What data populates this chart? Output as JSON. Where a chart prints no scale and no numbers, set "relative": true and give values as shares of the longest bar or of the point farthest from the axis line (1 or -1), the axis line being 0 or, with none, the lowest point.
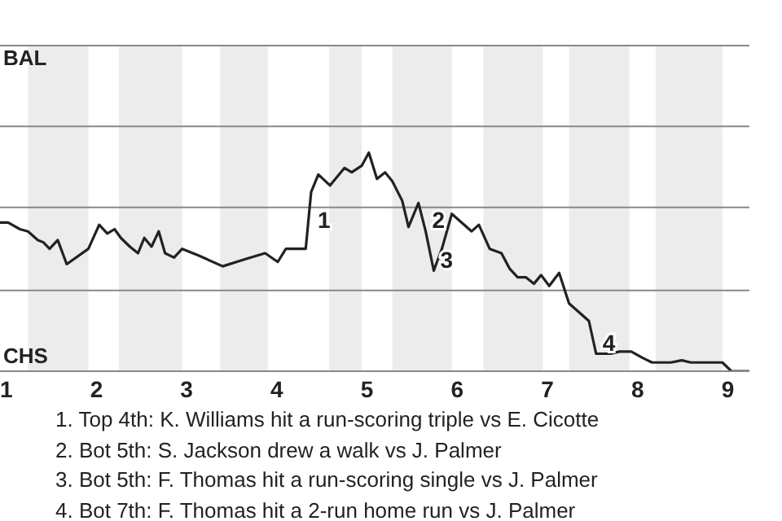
{
  "chart_data": {
    "type": "line",
    "relative": true,
    "xlim": [
      0.93,
      9.24
    ],
    "xticks": [
      1,
      2,
      3,
      4,
      5,
      6,
      7,
      8,
      9
    ],
    "ref_lines": [
      {
        "axis": "y",
        "value": 0.37,
        "color": "#888888"
      },
      {
        "axis": "y",
        "value": 0.75,
        "color": "#888888"
      },
      {
        "axis": "y",
        "value": 1.12,
        "color": "#888888"
      },
      {
        "axis": "y",
        "value": 1.49,
        "color": "#888888"
      }
    ],
    "marker": "none",
    "line_style": "solid",
    "series": [
      {
        "color": "#222222",
        "x": [
          0.93,
          1.02,
          1.15,
          1.24,
          1.35,
          1.41,
          1.48,
          1.57,
          1.67,
          1.91,
          2.03,
          2.12,
          2.2,
          2.27,
          2.37,
          2.46,
          2.53,
          2.61,
          2.69,
          2.76,
          2.86,
          2.95,
          3.13,
          3.4,
          3.63,
          3.87,
          4.01,
          4.1,
          4.32,
          4.38,
          4.46,
          4.59,
          4.75,
          4.83,
          4.94,
          5.02,
          5.11,
          5.2,
          5.28,
          5.39,
          5.46,
          5.57,
          5.65,
          5.74,
          5.83,
          5.94,
          6.16,
          6.24,
          6.36,
          6.49,
          6.58,
          6.67,
          6.76,
          6.85,
          6.93,
          7.02,
          7.13,
          7.24,
          7.46,
          7.54,
          7.7,
          7.8,
          7.93,
          8.06,
          8.16,
          8.37,
          8.49,
          8.59,
          8.94,
          9.04,
          9.12,
          9.24
        ],
        "values": [
          0.68,
          0.68,
          0.65,
          0.64,
          0.6,
          0.59,
          0.56,
          0.6,
          0.49,
          0.56,
          0.67,
          0.63,
          0.65,
          0.61,
          0.57,
          0.54,
          0.61,
          0.57,
          0.64,
          0.54,
          0.52,
          0.56,
          0.53,
          0.48,
          0.51,
          0.54,
          0.5,
          0.56,
          0.56,
          0.82,
          0.9,
          0.85,
          0.93,
          0.91,
          0.94,
          1,
          0.88,
          0.91,
          0.87,
          0.78,
          0.66,
          0.77,
          0.64,
          0.46,
          0.56,
          0.72,
          0.64,
          0.67,
          0.56,
          0.54,
          0.47,
          0.43,
          0.43,
          0.4,
          0.44,
          0.39,
          0.45,
          0.31,
          0.23,
          0.08,
          0.08,
          0.09,
          0.09,
          0.06,
          0.04,
          0.04,
          0.05,
          0.04,
          0.04,
          0,
          0,
          0
        ]
      }
    ],
    "bands": [
      {
        "axis": "x",
        "from": 1.24,
        "to": 1.91,
        "color": "#ececec"
      },
      {
        "axis": "x",
        "from": 2.25,
        "to": 2.95,
        "color": "#ececec"
      },
      {
        "axis": "x",
        "from": 3.37,
        "to": 3.9,
        "color": "#ececec"
      },
      {
        "axis": "x",
        "from": 4.58,
        "to": 4.94,
        "color": "#ececec"
      },
      {
        "axis": "x",
        "from": 5.28,
        "to": 5.94,
        "color": "#ececec"
      },
      {
        "axis": "x",
        "from": 6.29,
        "to": 6.95,
        "color": "#ececec"
      },
      {
        "axis": "x",
        "from": 7.24,
        "to": 7.91,
        "color": "#ececec"
      },
      {
        "axis": "x",
        "from": 8.2,
        "to": 8.94,
        "color": "#ececec"
      }
    ],
    "annotations": [
      "BAL",
      "CHS",
      {
        "text": "1",
        "x": 4.38,
        "y": 0.64
      },
      {
        "text": "2",
        "x": 5.65,
        "y": 0.64
      },
      {
        "text": "3",
        "x": 5.74,
        "y": 0.46
      },
      {
        "text": "4",
        "x": 7.54,
        "y": 0.08
      },
      "1. Top 4th: K. Williams hit a run-scoring triple vs E. Cicotte",
      "2. Bot 5th: S. Jackson drew a walk vs J. Palmer",
      "3. Bot 5th: F. Thomas hit a run-scoring single vs J. Palmer",
      "4. Bot 7th: F. Thomas hit a 2-run home run vs J. Palmer"
    ]
  }
}
